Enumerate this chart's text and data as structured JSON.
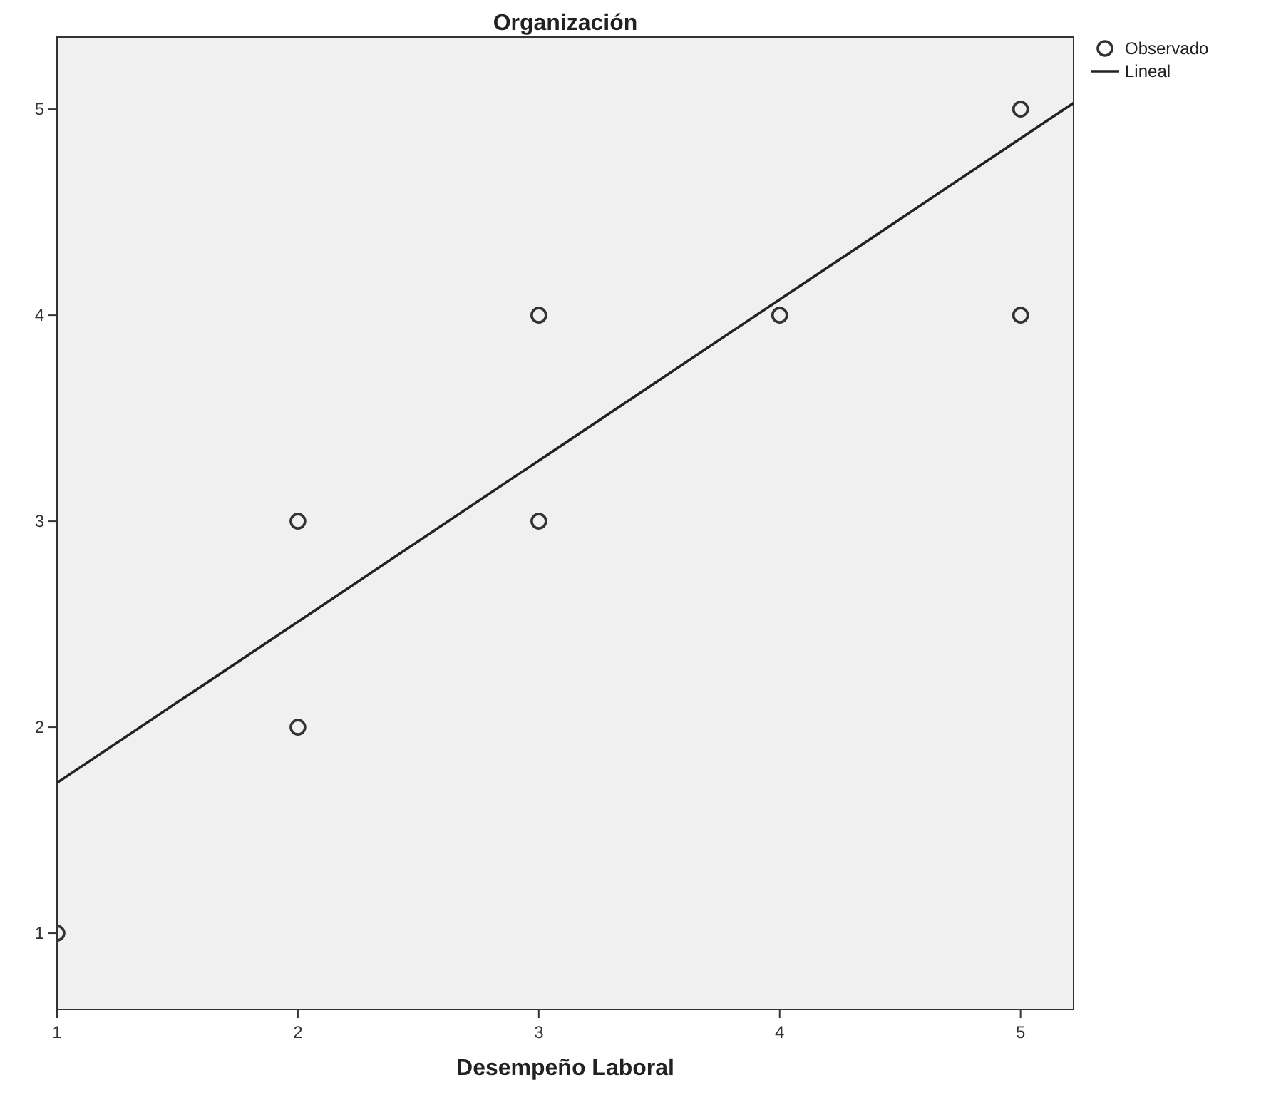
{
  "chart_data": {
    "type": "scatter",
    "title": "Organización",
    "xlabel": "Desempeño Laboral",
    "xlim": [
      1,
      5.22
    ],
    "ylim": [
      0.63,
      5.35
    ],
    "xticks": [
      1,
      2,
      3,
      4,
      5
    ],
    "yticks": [
      1,
      2,
      3,
      4,
      5
    ],
    "grid": false,
    "legend": "top right",
    "series": [
      {
        "name": "Observado",
        "color": "#333333",
        "marker": "circle",
        "x": [
          1,
          2,
          2,
          3,
          3,
          4,
          5,
          5
        ],
        "values": [
          1,
          3,
          2,
          4,
          3,
          4,
          5,
          4
        ]
      },
      {
        "name": "Lineal",
        "type": "line",
        "color": "#222222",
        "x": [
          1,
          5.22
        ],
        "values": [
          1.73,
          5.03
        ],
        "line_style": "solid"
      }
    ]
  }
}
